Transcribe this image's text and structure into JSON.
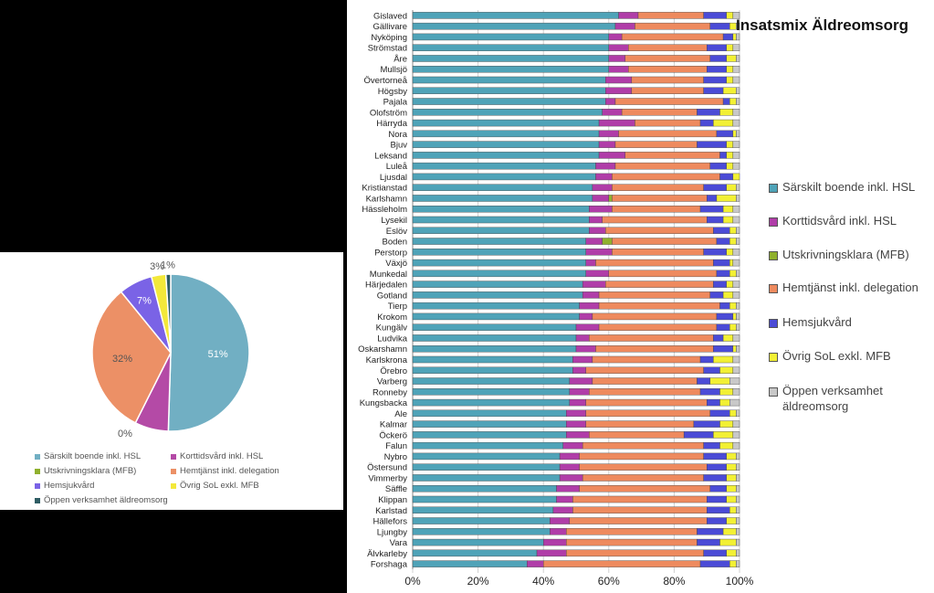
{
  "colors": [
    "#4fa3b8",
    "#b03da8",
    "#8fb02d",
    "#ee8a5e",
    "#4b4bd6",
    "#f2f034",
    "#c8c8c8"
  ],
  "pie_colors": [
    "#71afc3",
    "#b44aa6",
    "#8fb02d",
    "#ec9066",
    "#7a63e6",
    "#f3e83a",
    "#2e5c63"
  ],
  "chart_data": [
    {
      "type": "pie",
      "labels": [
        "Särskilt boende inkl. HSL",
        "Korttidsvård inkl. HSL",
        "Utskrivningsklara (MFB)",
        "Hemtjänst inkl. delegation",
        "Hemsjukvård",
        "Övrig SoL exkl. MFB",
        "Öppen verksamhet äldreomsorg"
      ],
      "values": [
        51,
        7,
        0,
        32,
        7,
        3,
        1
      ],
      "value_labels": [
        "51%",
        "7%",
        "0%",
        "32%",
        "7%",
        "3%",
        "1%"
      ],
      "legend": "bottom"
    },
    {
      "type": "bar",
      "orientation": "horizontal",
      "stacked": "percent",
      "title": "Insatsmix Äldreomsorg",
      "legend": "right",
      "xlim": [
        0,
        100
      ],
      "x_ticks": [
        "0%",
        "20%",
        "40%",
        "60%",
        "80%",
        "100%"
      ],
      "grid": true,
      "categories": [
        "Gislaved",
        "Gällivare",
        "Nyköping",
        "Strömstad",
        "Åre",
        "Mullsjö",
        "Övertorneå",
        "Högsby",
        "Pajala",
        "Olofström",
        "Härryda",
        "Nora",
        "Bjuv",
        "Leksand",
        "Luleå",
        "Ljusdal",
        "Kristianstad",
        "Karlshamn",
        "Hässleholm",
        "Lysekil",
        "Eslöv",
        "Boden",
        "Perstorp",
        "Växjö",
        "Munkedal",
        "Härjedalen",
        "Gotland",
        "Tierp",
        "Krokom",
        "Kungälv",
        "Ludvika",
        "Oskarshamn",
        "Karlskrona",
        "Örebro",
        "Varberg",
        "Ronneby",
        "Kungsbacka",
        "Ale",
        "Kalmar",
        "Öckerö",
        "Falun",
        "Nybro",
        "Östersund",
        "Vimmerby",
        "Säffle",
        "Klippan",
        "Karlstad",
        "Hällefors",
        "Ljungby",
        "Vara",
        "Älvkarleby",
        "Forshaga"
      ],
      "series": [
        {
          "name": "Särskilt boende inkl. HSL",
          "values": [
            63,
            62,
            60,
            60,
            60,
            60,
            59,
            59,
            59,
            58,
            57,
            57,
            57,
            57,
            56,
            56,
            55,
            55,
            54,
            54,
            54,
            53,
            53,
            53,
            53,
            52,
            52,
            51,
            51,
            50,
            50,
            50,
            49,
            49,
            48,
            48,
            48,
            47,
            47,
            47,
            46,
            45,
            45,
            45,
            44,
            44,
            43,
            42,
            42,
            40,
            38,
            35
          ]
        },
        {
          "name": "Korttidsvård inkl. HSL",
          "values": [
            6,
            6,
            4,
            6,
            5,
            6,
            8,
            8,
            3,
            6,
            11,
            6,
            5,
            8,
            6,
            5,
            6,
            5,
            7,
            4,
            5,
            5,
            8,
            3,
            7,
            7,
            5,
            6,
            4,
            7,
            4,
            6,
            6,
            4,
            7,
            6,
            5,
            6,
            6,
            7,
            6,
            6,
            6,
            7,
            7,
            5,
            6,
            6,
            5,
            7,
            9,
            5
          ]
        },
        {
          "name": "Utskrivningsklara (MFB)",
          "values": [
            0,
            0,
            0,
            0,
            0,
            0,
            0,
            0,
            0,
            0,
            0,
            0,
            0,
            0,
            0,
            0,
            0,
            1,
            0,
            0,
            0,
            3,
            0,
            0,
            0,
            0,
            0,
            0,
            0,
            0,
            0,
            0,
            0,
            0,
            0,
            0,
            0,
            0,
            0,
            0,
            0,
            0,
            0,
            0,
            0,
            0,
            0,
            0,
            0,
            0,
            0,
            0
          ]
        },
        {
          "name": "Hemtjänst inkl. delegation",
          "values": [
            20,
            23,
            31,
            24,
            26,
            24,
            22,
            22,
            33,
            23,
            20,
            30,
            25,
            29,
            29,
            33,
            28,
            29,
            27,
            32,
            33,
            32,
            28,
            36,
            33,
            33,
            34,
            37,
            38,
            36,
            38,
            36,
            33,
            36,
            32,
            34,
            37,
            38,
            33,
            29,
            37,
            38,
            39,
            37,
            40,
            41,
            41,
            42,
            40,
            40,
            42,
            48
          ]
        },
        {
          "name": "Hemsjukvård",
          "values": [
            7,
            6,
            3,
            6,
            5,
            6,
            7,
            6,
            2,
            7,
            4,
            5,
            9,
            2,
            5,
            4,
            7,
            3,
            7,
            5,
            5,
            4,
            7,
            5,
            4,
            4,
            4,
            3,
            5,
            4,
            3,
            6,
            4,
            5,
            4,
            6,
            4,
            6,
            8,
            9,
            5,
            7,
            6,
            7,
            5,
            6,
            7,
            6,
            8,
            7,
            7,
            9
          ]
        },
        {
          "name": "Övrig SoL exkl. MFB",
          "values": [
            2,
            2,
            1,
            2,
            3,
            2,
            2,
            4,
            2,
            4,
            6,
            1,
            2,
            2,
            2,
            2,
            3,
            6,
            3,
            3,
            2,
            2,
            2,
            1,
            2,
            2,
            3,
            2,
            1,
            2,
            3,
            1,
            6,
            4,
            6,
            4,
            3,
            2,
            4,
            6,
            4,
            3,
            3,
            3,
            3,
            3,
            2,
            3,
            4,
            5,
            3,
            2
          ]
        },
        {
          "name": "Öppen verksamhet äldreomsorg",
          "values": [
            2,
            1,
            1,
            2,
            1,
            2,
            2,
            1,
            1,
            2,
            2,
            1,
            2,
            2,
            2,
            0,
            1,
            1,
            2,
            2,
            1,
            1,
            2,
            2,
            1,
            2,
            2,
            1,
            1,
            1,
            2,
            1,
            2,
            2,
            3,
            2,
            3,
            1,
            2,
            2,
            2,
            1,
            1,
            1,
            1,
            1,
            1,
            1,
            1,
            1,
            1,
            1
          ]
        }
      ]
    }
  ]
}
